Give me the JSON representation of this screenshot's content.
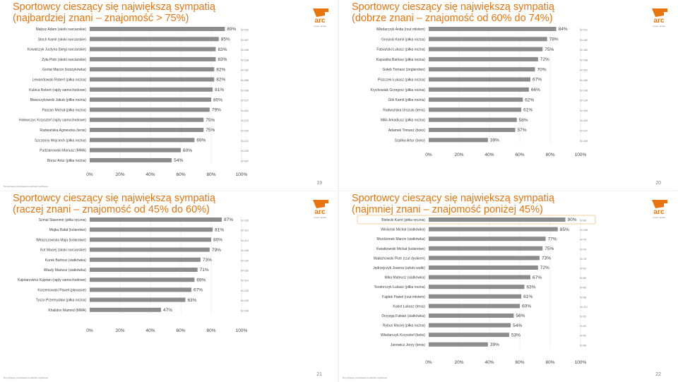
{
  "logo_text": "arc",
  "logo_tagline": "rynek i opinia",
  "colors": {
    "accent": "#e8730f",
    "bar": "#8c8c8c",
    "text": "#404040",
    "muted": "#7f7f7f",
    "grid": "#e0e0e0"
  },
  "axis": {
    "ticks": [
      "0%",
      "20%",
      "40%",
      "60%",
      "80%",
      "100%"
    ]
  },
  "footnote": "Na wykresie przedstawiono wartości top2boxes.",
  "chart_data": [
    {
      "type": "bar",
      "title": "Sportowcy cieszący się największą sympatią",
      "subtitle": "(najbardziej znani – znajomość > 75%)",
      "categories": [
        "Małysz Adam (skoki narciarskie)",
        "Stoch Kamil (skoki narciarskie)",
        "Kowalczyk Justyna (biegi narciarskie)",
        "Żyła Piotr (skoki narciarskie)",
        "Gortat Marcin (koszykówka)",
        "Lewandowski Robert (piłka nożna)",
        "Kubica Robert (rajdy samochodowe)",
        "Błaszczykowski Jakub (piłka nożna)",
        "Paszan Michał (piłka nożna)",
        "Hołowczyc Krzysztof (rajdy samochodowe)",
        "Radwańska Agnieszka (tenis)",
        "Szczęsny Wojciech (piłka nożna)",
        "Pudzianowski Mariusz (MMA)",
        "Boruc Artur (piłka nożna)"
      ],
      "values": [
        89,
        85,
        83,
        83,
        82,
        82,
        81,
        80,
        79,
        75,
        75,
        69,
        60,
        54
      ],
      "ns": [
        "N=202",
        "N=267",
        "N=198",
        "N=238",
        "N=182",
        "N=286",
        "N=246",
        "N=227",
        "N=281",
        "N=212",
        "N=220",
        "N=221",
        "N=209",
        "N=287"
      ],
      "xlim": [
        0,
        100
      ],
      "page": "19"
    },
    {
      "type": "bar",
      "title": "Sportowcy cieszący się największą sympatią",
      "subtitle": "(dobrze znani – znajomość od 60% do 74%)",
      "categories": [
        "Włodarczyk Anita (rzut młotem)",
        "Grosicki Kamil (piłka nożna)",
        "Fabiański Łukasz (piłka nożna)",
        "Kapustka Bartosz (piłka nożna)",
        "Gołęb Tomasz (żeglarstwo)",
        "Piszczek Łukasz (piłka nożna)",
        "Krychowiak Grzegorz (piłka nożna)",
        "Glik Kamil (piłka nożna)",
        "Radwańska Urszula (tenis)",
        "Milik Arkadiusz (piłka nożna)",
        "Adamek Tomasz (boks)",
        "Szpilka Artur (boks)"
      ],
      "values": [
        84,
        78,
        75,
        72,
        70,
        67,
        66,
        62,
        61,
        58,
        57,
        39
      ],
      "ns": [
        "N=201",
        "N=182",
        "N=180",
        "N=188",
        "N=151",
        "N=186",
        "N=146",
        "N=134",
        "N=165",
        "N=154",
        "N=147",
        "N=169"
      ],
      "xlim": [
        0,
        100
      ],
      "page": "20"
    },
    {
      "type": "bar",
      "title": "Sportowcy cieszący się największą sympatią",
      "subtitle": "(raczej znani – znajomość od 45% do 60%)",
      "categories": [
        "Szmal Sławomir (piłka ręczna)",
        "Majka Rafał (kolarstwo)",
        "Włoszczowska Maja (kolarstwo)",
        "Kot Maciej (skoki narciarskie)",
        "Kurek Bartosz (siatkówka)",
        "Wlazly Mariusz (siatkówka)",
        "Kajetanowicz Kajetan (rajdy samochodowe)",
        "Korzeniowski Paweł (pływanie)",
        "Tyszo Przemysław (piłka nożna)",
        "Khalidov Mamed (MMA)"
      ],
      "values": [
        87,
        81,
        80,
        79,
        73,
        71,
        69,
        67,
        63,
        47
      ],
      "ns": [
        "N=120",
        "N=121",
        "N=113",
        "N=136",
        "N=132",
        "N=152",
        "N=114",
        "N=132",
        "N=129",
        "N=144"
      ],
      "xlim": [
        0,
        100
      ],
      "page": "21"
    },
    {
      "type": "bar",
      "title": "Sportowcy cieszący się największą sympatią",
      "subtitle": "(najmniej znani – znajomość poniżej 45%)",
      "categories": [
        "Bielecki Karol (piłka ręczna)",
        "Winiarski Michał (siatkówka)",
        "Mozdzonek Marcin (siatkówka)",
        "Kwiatkowski Michał (kolarstwo)",
        "Małachowski Piotr (rzut dyskiem)",
        "Jędrzejczyk Joanna (sztuki walki)",
        "Mika Mateusz (siatkówka)",
        "Teodorczyk Łukasz (piłka nożna)",
        "Fajdek Paweł (rzut młotem)",
        "Kubot Łukasz (tenis)",
        "Drzyzga Fabian (siatkówka)",
        "Rybus Maciej (piłka nożna)",
        "Włodarczyk Krzysztof (boks)",
        "Janowicz Jerzy (tenis)"
      ],
      "values": [
        90,
        85,
        77,
        75,
        73,
        72,
        67,
        63,
        61,
        60,
        56,
        54,
        53,
        39
      ],
      "ns": [
        "N=84",
        "N=106",
        "N=76",
        "N=94",
        "N=78",
        "N=92",
        "N=66",
        "N=85",
        "N=88",
        "N=112",
        "N=52",
        "N=84",
        "N=82",
        "N=86"
      ],
      "highlight_index": 0,
      "xlim": [
        0,
        100
      ],
      "page": "22"
    }
  ]
}
